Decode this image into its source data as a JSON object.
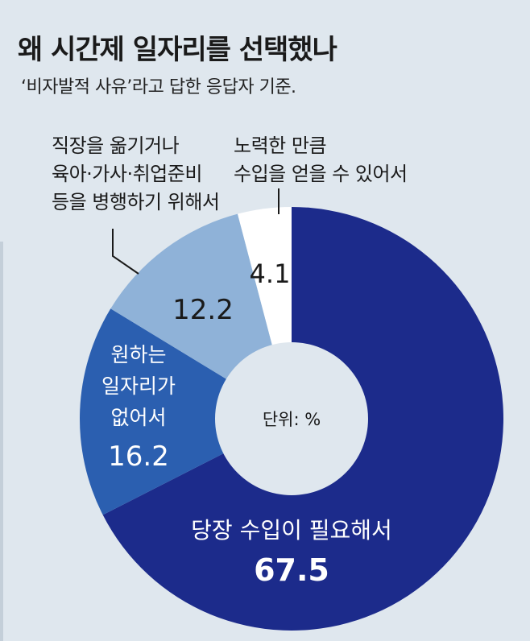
{
  "title": "왜 시간제 일자리를 선택했나",
  "subtitle": "‘비자발적 사유’라고 답한 응답자 기준.",
  "center_label": "단위: %",
  "annotations": {
    "left": [
      "직장을 옮기거나",
      "육아·가사·취업준비",
      "등을 병행하기 위해서"
    ],
    "right": [
      "노력한 만큼",
      "수입을 얻을 수 있어서"
    ]
  },
  "colors": {
    "background": "#dfe7ee",
    "primary": "#1c2b8b",
    "secondary": "#2b5fb0",
    "tertiary": "#8fb2d8",
    "quaternary": "#ffffff"
  },
  "chart_data": {
    "type": "pie",
    "donut": true,
    "slices": [
      {
        "label": "당장 수입이 필요해서",
        "value": 67.5,
        "color": "#1c2b8b",
        "value_text": "67.5"
      },
      {
        "label": "원하는 일자리가 없어서",
        "value": 16.2,
        "color": "#2b5fb0",
        "value_text": "16.2",
        "label_lines": [
          "원하는",
          "일자리가",
          "없어서"
        ]
      },
      {
        "label": "직장을 옮기거나 육아·가사·취업준비 등을 병행하기 위해서",
        "value": 12.2,
        "color": "#8fb2d8",
        "value_text": "12.2"
      },
      {
        "label": "노력한 만큼 수입을 얻을 수 있어서",
        "value": 4.1,
        "color": "#ffffff",
        "value_text": "4.1"
      }
    ]
  }
}
